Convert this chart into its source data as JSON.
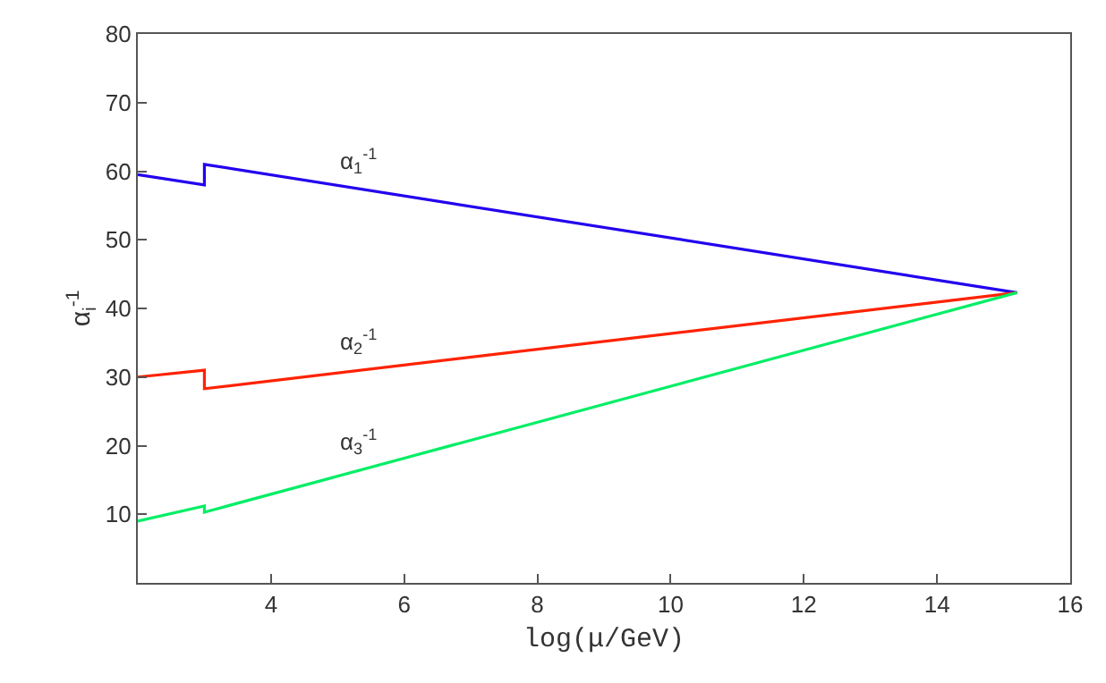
{
  "chart_data": {
    "type": "line",
    "xlabel": "log(μ/GeV)",
    "ylabel": "α$_{i}$$^{-1}$",
    "xlim": [
      2,
      16
    ],
    "ylim": [
      0,
      80
    ],
    "xticks": [
      4,
      6,
      8,
      10,
      12,
      14,
      16
    ],
    "yticks": [
      10,
      20,
      30,
      40,
      50,
      60,
      70,
      80
    ],
    "legend": false,
    "marker": "none",
    "line_style": "solid",
    "series": [
      {
        "name": "α$_{1}$$^{-1}$",
        "color": "#2200ee",
        "x": [
          2,
          3,
          3,
          15.2
        ],
        "values": [
          59.5,
          58,
          61,
          42.3
        ]
      },
      {
        "name": "α$_{2}$$^{-1}$",
        "color": "#ff2200",
        "x": [
          2,
          3,
          3,
          15.2
        ],
        "values": [
          30,
          31,
          28.3,
          42.3
        ]
      },
      {
        "name": "α$_{3}$$^{-1}$",
        "color": "#00ee66",
        "x": [
          2,
          3,
          3,
          15.2
        ],
        "values": [
          9,
          11.2,
          10.3,
          42.3
        ]
      }
    ]
  }
}
